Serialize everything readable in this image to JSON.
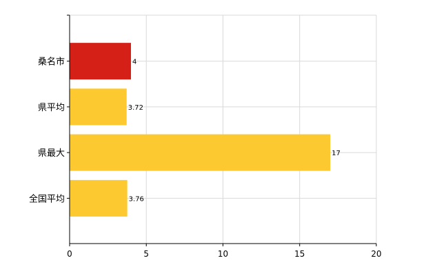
{
  "chart_data": {
    "type": "bar",
    "orientation": "horizontal",
    "categories": [
      "桑名市",
      "県平均",
      "県最大",
      "全国平均"
    ],
    "values": [
      4,
      3.72,
      17,
      3.76
    ],
    "value_labels": [
      "4",
      "3.72",
      "17",
      "3.76"
    ],
    "bar_colors": [
      "#d42017",
      "#fdc931",
      "#fdc931",
      "#fdc931"
    ],
    "xlim": [
      0,
      20
    ],
    "xticks": [
      0,
      5,
      10,
      15,
      20
    ],
    "grid": true,
    "legend": "none"
  }
}
